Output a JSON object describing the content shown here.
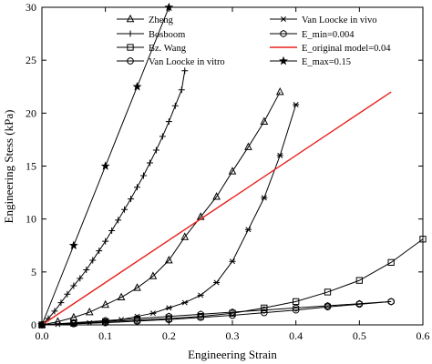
{
  "chart_data": {
    "type": "line",
    "xlabel": "Engineering Strain",
    "ylabel": "Engineering Stess (kPa)",
    "xlim": [
      0.0,
      0.6
    ],
    "ylim": [
      0,
      30
    ],
    "x_ticks": [
      "0.0",
      "0.1",
      "0.2",
      "0.3",
      "0.4",
      "0.5",
      "0.6"
    ],
    "y_ticks": [
      "0",
      "5",
      "10",
      "15",
      "20",
      "25",
      "30"
    ],
    "x_tick_values": [
      0,
      0.1,
      0.2,
      0.3,
      0.4,
      0.5,
      0.6
    ],
    "y_tick_values": [
      0,
      5,
      10,
      15,
      20,
      25,
      30
    ],
    "grid": false,
    "legend_placement": "top (inside plot, two columns)",
    "series": [
      {
        "name": "Zheng",
        "marker": "triangle",
        "color": "#000000",
        "x": [
          0,
          0.025,
          0.05,
          0.075,
          0.1,
          0.125,
          0.15,
          0.175,
          0.2,
          0.225,
          0.25,
          0.275,
          0.3,
          0.325,
          0.35,
          0.375
        ],
        "y": [
          0,
          0.3,
          0.7,
          1.2,
          1.9,
          2.6,
          3.5,
          4.6,
          6.1,
          8.3,
          10.2,
          12.1,
          14.5,
          16.8,
          19.2,
          22.0
        ]
      },
      {
        "name": "Bosboom",
        "marker": "plus",
        "color": "#000000",
        "x": [
          0,
          0.01,
          0.02,
          0.03,
          0.04,
          0.05,
          0.06,
          0.07,
          0.08,
          0.09,
          0.1,
          0.11,
          0.12,
          0.13,
          0.14,
          0.15,
          0.16,
          0.17,
          0.18,
          0.19,
          0.2,
          0.21,
          0.22,
          0.225
        ],
        "y": [
          0,
          0.6,
          1.3,
          2.1,
          2.9,
          3.7,
          4.4,
          5.2,
          6.1,
          7.0,
          7.9,
          8.9,
          9.9,
          10.9,
          11.9,
          13.0,
          14.1,
          15.3,
          16.5,
          17.8,
          19.2,
          20.7,
          22.2,
          24.0
        ]
      },
      {
        "name": "Bz. Wang",
        "marker": "square",
        "color": "#000000",
        "x": [
          0,
          0.05,
          0.1,
          0.15,
          0.2,
          0.25,
          0.3,
          0.35,
          0.4,
          0.45,
          0.5,
          0.55,
          0.6
        ],
        "y": [
          0,
          0.15,
          0.3,
          0.45,
          0.6,
          0.8,
          1.1,
          1.6,
          2.2,
          3.1,
          4.2,
          5.9,
          8.1
        ]
      },
      {
        "name": "Van Loocke in vitro",
        "marker": "circle",
        "color": "#000000",
        "x": [
          0,
          0.05,
          0.1,
          0.15,
          0.2,
          0.25,
          0.3,
          0.35,
          0.4,
          0.45,
          0.5,
          0.55
        ],
        "y": [
          0,
          0.1,
          0.2,
          0.35,
          0.5,
          0.7,
          0.9,
          1.15,
          1.4,
          1.7,
          1.95,
          2.2
        ]
      },
      {
        "name": "Van Loocke in vivo",
        "marker": "asterisk",
        "color": "#000000",
        "x": [
          0,
          0.025,
          0.05,
          0.075,
          0.1,
          0.125,
          0.15,
          0.175,
          0.2,
          0.225,
          0.25,
          0.275,
          0.3,
          0.325,
          0.35,
          0.375,
          0.4
        ],
        "y": [
          0,
          0.05,
          0.1,
          0.2,
          0.3,
          0.5,
          0.8,
          1.1,
          1.6,
          2.1,
          2.8,
          4.0,
          6.0,
          9.0,
          12.0,
          16.0,
          20.8
        ]
      },
      {
        "name": "E_min=0.004",
        "marker": "hexagon",
        "color": "#000000",
        "x": [
          0,
          0.05,
          0.1,
          0.15,
          0.2,
          0.25,
          0.3,
          0.35,
          0.4,
          0.45,
          0.5,
          0.55
        ],
        "y": [
          0,
          0.2,
          0.4,
          0.6,
          0.8,
          1.0,
          1.2,
          1.4,
          1.6,
          1.8,
          2.0,
          2.2
        ]
      },
      {
        "name": "E_original model=0.04",
        "marker": "none",
        "color": "#e8201c",
        "x": [
          0,
          0.55
        ],
        "y": [
          0,
          22.0
        ]
      },
      {
        "name": "E_max=0.15",
        "marker": "star",
        "color": "#000000",
        "x": [
          0,
          0.05,
          0.1,
          0.15,
          0.2
        ],
        "y": [
          0,
          7.5,
          15.0,
          22.5,
          30.0
        ]
      }
    ]
  }
}
